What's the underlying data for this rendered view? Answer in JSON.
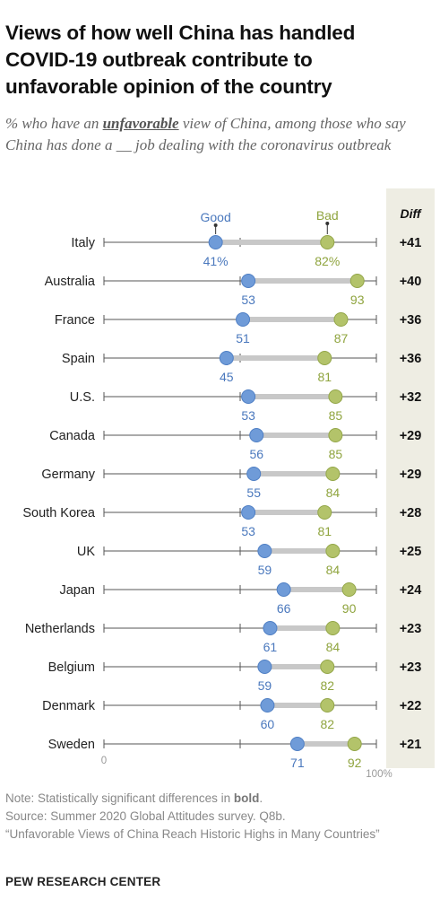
{
  "header": {
    "title": "Views of how well China has handled COVID-19 outbreak contribute to unfavorable opinion of the country",
    "subtitle_pre": "% who have an ",
    "subtitle_key": "unfavorable",
    "subtitle_post": " view of China, among those who say China has done a __ job dealing with the coronavirus outbreak"
  },
  "colors": {
    "good": "#6f9bd8",
    "bad": "#b3c36a",
    "diff_bg": "#eeede3",
    "bar": "#c8c8c8"
  },
  "chart_data": {
    "type": "dot",
    "legend": {
      "good": "Good",
      "bad": "Bad"
    },
    "diff_header": "Diff",
    "axis_min_label": "0",
    "axis_max_label": "100%",
    "xlim": [
      0,
      100
    ],
    "rows": [
      {
        "country": "Italy",
        "good": 41,
        "bad": 82,
        "diff": "+41",
        "good_label": "41%",
        "bad_label": "82%"
      },
      {
        "country": "Australia",
        "good": 53,
        "bad": 93,
        "diff": "+40",
        "good_label": "53",
        "bad_label": "93"
      },
      {
        "country": "France",
        "good": 51,
        "bad": 87,
        "diff": "+36",
        "good_label": "51",
        "bad_label": "87"
      },
      {
        "country": "Spain",
        "good": 45,
        "bad": 81,
        "diff": "+36",
        "good_label": "45",
        "bad_label": "81"
      },
      {
        "country": "U.S.",
        "good": 53,
        "bad": 85,
        "diff": "+32",
        "good_label": "53",
        "bad_label": "85"
      },
      {
        "country": "Canada",
        "good": 56,
        "bad": 85,
        "diff": "+29",
        "good_label": "56",
        "bad_label": "85"
      },
      {
        "country": "Germany",
        "good": 55,
        "bad": 84,
        "diff": "+29",
        "good_label": "55",
        "bad_label": "84"
      },
      {
        "country": "South Korea",
        "good": 53,
        "bad": 81,
        "diff": "+28",
        "good_label": "53",
        "bad_label": "81"
      },
      {
        "country": "UK",
        "good": 59,
        "bad": 84,
        "diff": "+25",
        "good_label": "59",
        "bad_label": "84"
      },
      {
        "country": "Japan",
        "good": 66,
        "bad": 90,
        "diff": "+24",
        "good_label": "66",
        "bad_label": "90"
      },
      {
        "country": "Netherlands",
        "good": 61,
        "bad": 84,
        "diff": "+23",
        "good_label": "61",
        "bad_label": "84"
      },
      {
        "country": "Belgium",
        "good": 59,
        "bad": 82,
        "diff": "+23",
        "good_label": "59",
        "bad_label": "82"
      },
      {
        "country": "Denmark",
        "good": 60,
        "bad": 82,
        "diff": "+22",
        "good_label": "60",
        "bad_label": "82"
      },
      {
        "country": "Sweden",
        "good": 71,
        "bad": 92,
        "diff": "+21",
        "good_label": "71",
        "bad_label": "92"
      }
    ]
  },
  "footer": {
    "note_pre": "Note: Statistically significant differences in ",
    "note_bold": "bold",
    "note_post": ".",
    "source": "Source: Summer 2020 Global Attitudes survey. Q8b.",
    "report": "“Unfavorable Views of China Reach Historic Highs in Many Countries”",
    "brand": "PEW RESEARCH CENTER"
  }
}
